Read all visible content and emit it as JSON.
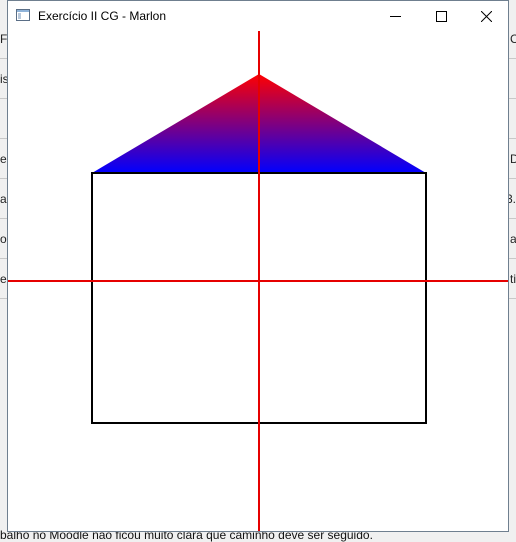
{
  "window": {
    "title": "Exercício II CG - Marlon",
    "controls": {
      "minimize_icon": "minimize-icon",
      "maximize_icon": "maximize-icon",
      "close_icon": "close-icon"
    }
  },
  "background": {
    "bottom_text": "balho no Moodle não ficou muito clara que caminho deve ser seguido.",
    "left_fragments": [
      "FF",
      "is",
      "e",
      "a",
      "o",
      "er"
    ],
    "right_fragments": [
      "C",
      "D",
      "3.",
      "a",
      "ti"
    ]
  },
  "scene": {
    "axis_color": "#e60000",
    "outline_color": "#000000",
    "roof_gradient": {
      "top": "#ff0000",
      "bottom": "#0000ff"
    }
  }
}
